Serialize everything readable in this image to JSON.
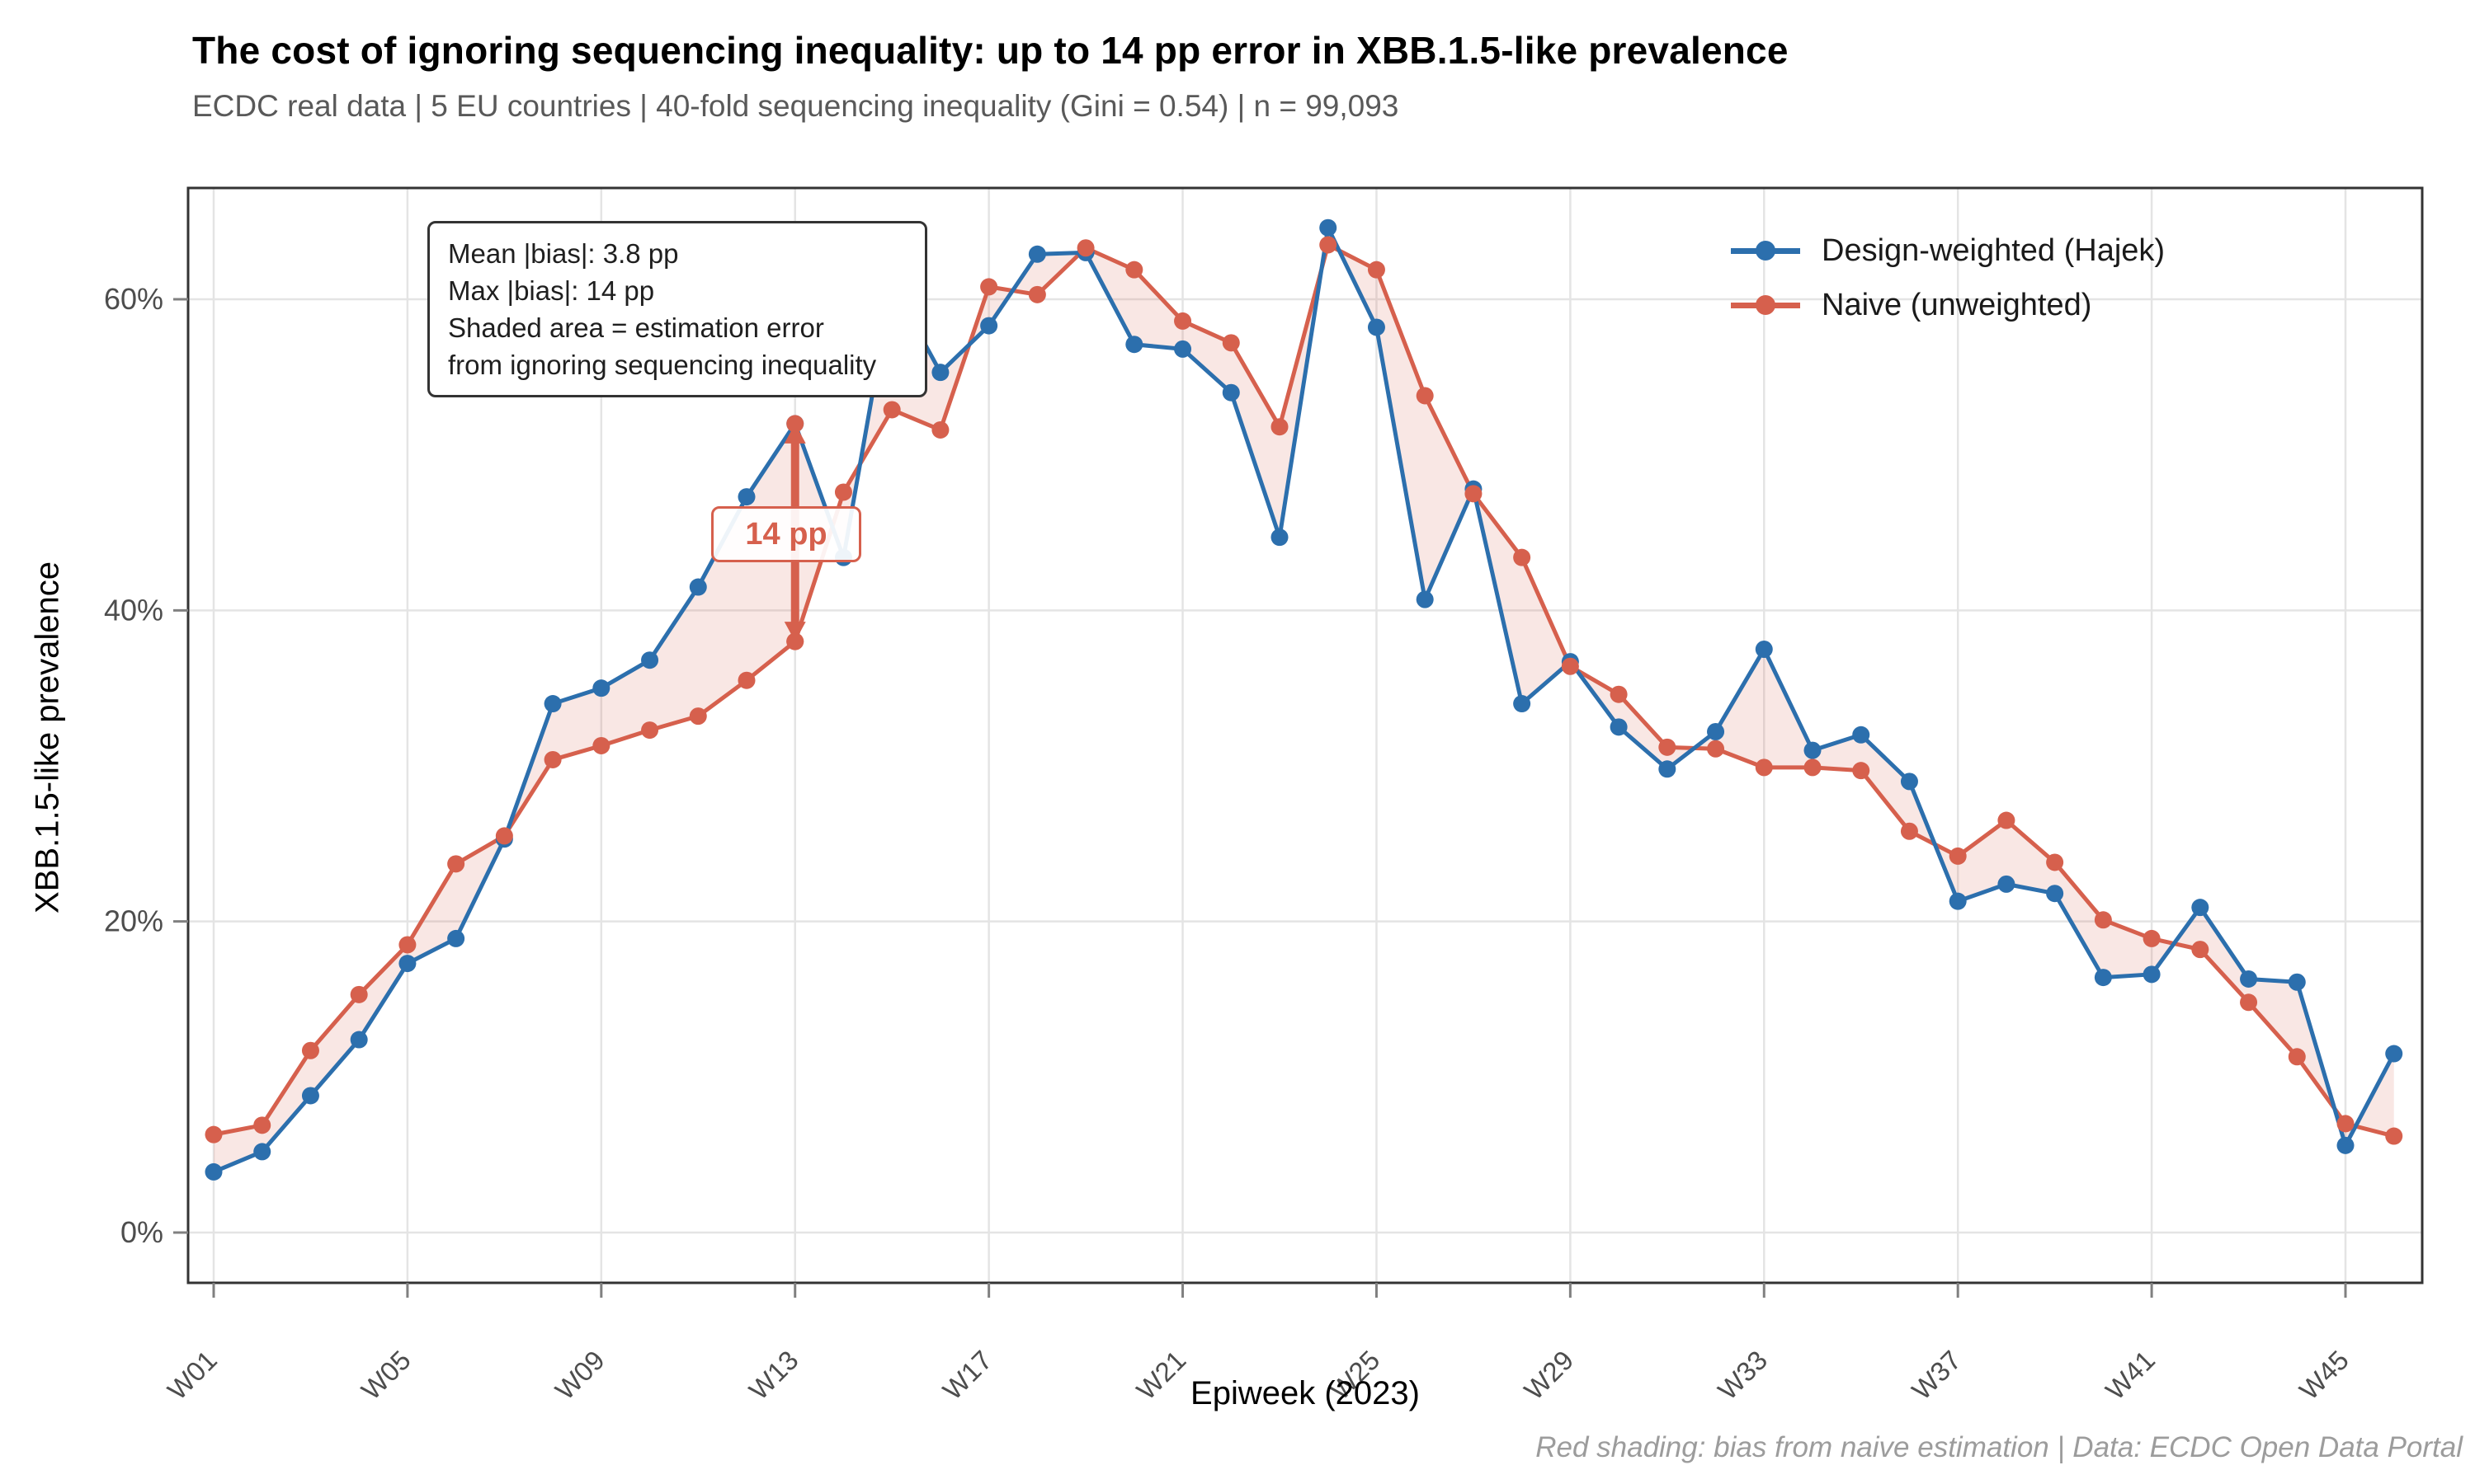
{
  "title": "The cost of ignoring sequencing inequality: up to 14 pp error in XBB.1.5-like prevalence",
  "subtitle": "ECDC real data | 5 EU countries | 40-fold sequencing inequality (Gini = 0.54) | n = 99,093",
  "annotation": {
    "line1": "Mean |bias|: 3.8 pp",
    "line2": "Max |bias|: 14 pp",
    "line3": "Shaded area = estimation error",
    "line4": "from ignoring sequencing inequality"
  },
  "bias_label": "14 pp",
  "footer": "Red shading: bias from naive estimation | Data: ECDC Open Data Portal",
  "legend": [
    {
      "label": "Design-weighted (Hajek)",
      "color": "#2c6fad"
    },
    {
      "label": "Naive (unweighted)",
      "color": "#d6604d"
    }
  ],
  "colors": {
    "hajek_blue": "#2c6fad",
    "naive_red": "#d6604d",
    "ribbon_fill": "#d6604d",
    "ribbon_opacity": 0.15,
    "gridline": "#e4e4e4",
    "panel_border": "#333333",
    "tick_mark": "#808080",
    "tick_label": "#4d4d4d"
  },
  "chart_data": {
    "type": "line",
    "title": "The cost of ignoring sequencing inequality: up to 14 pp error in XBB.1.5-like prevalence",
    "xlabel": "Epiweek (2023)",
    "ylabel": "XBB.1.5-like prevalence",
    "x": [
      "W01",
      "W02",
      "W03",
      "W04",
      "W05",
      "W06",
      "W07",
      "W08",
      "W09",
      "W10",
      "W11",
      "W12",
      "W13",
      "W14",
      "W15",
      "W16",
      "W17",
      "W18",
      "W19",
      "W20",
      "W21",
      "W22",
      "W23",
      "W24",
      "W25",
      "W26",
      "W27",
      "W28",
      "W29",
      "W30",
      "W31",
      "W32",
      "W33",
      "W34",
      "W35",
      "W36",
      "W37",
      "W38",
      "W39",
      "W40",
      "W41",
      "W42",
      "W43",
      "W44",
      "W45",
      "W46"
    ],
    "x_tick_labels": [
      "W01",
      "W05",
      "W09",
      "W13",
      "W17",
      "W21",
      "W25",
      "W29",
      "W33",
      "W37",
      "W41",
      "W45"
    ],
    "y_tick_values": [
      0,
      20,
      40,
      60
    ],
    "y_tick_labels": [
      "0%",
      "20%",
      "40%",
      "60%"
    ],
    "ylim": [
      -3.2,
      67.2
    ],
    "grid": true,
    "legend_position": "top-right-inside",
    "units": "percent",
    "series": [
      {
        "name": "Design-weighted (Hajek)",
        "color": "#2c6fad",
        "values": [
          3.9,
          5.2,
          8.8,
          12.4,
          17.3,
          18.9,
          25.3,
          34.0,
          35.0,
          36.8,
          41.5,
          47.3,
          52.0,
          43.4,
          61.0,
          55.3,
          58.3,
          62.9,
          63.0,
          57.1,
          56.8,
          54.0,
          44.7,
          64.6,
          58.2,
          40.7,
          47.8,
          34.0,
          36.7,
          32.5,
          29.8,
          32.2,
          37.5,
          31.0,
          32.0,
          29.0,
          21.3,
          22.4,
          21.8,
          16.4,
          16.6,
          20.9,
          16.3,
          16.1,
          5.6,
          11.5
        ]
      },
      {
        "name": "Naive (unweighted)",
        "color": "#d6604d",
        "values": [
          6.3,
          6.9,
          11.7,
          15.3,
          18.5,
          23.7,
          25.5,
          30.4,
          31.3,
          32.3,
          33.2,
          35.5,
          38.0,
          47.6,
          52.9,
          51.6,
          60.8,
          60.3,
          63.3,
          61.9,
          58.6,
          57.2,
          51.8,
          63.5,
          61.9,
          53.8,
          47.5,
          43.4,
          36.4,
          34.6,
          31.2,
          31.1,
          29.9,
          29.9,
          29.7,
          25.8,
          24.2,
          26.5,
          23.8,
          20.1,
          18.9,
          18.2,
          14.8,
          11.3,
          7.0,
          6.2
        ]
      }
    ],
    "shaded_ribbon": "area between the two series (estimation error)",
    "max_bias": {
      "week": "W13",
      "week_index": 12,
      "hajek": 52.0,
      "naive": 38.0,
      "abs_bias_pp": 14
    },
    "mean_abs_bias_pp": 3.8
  }
}
